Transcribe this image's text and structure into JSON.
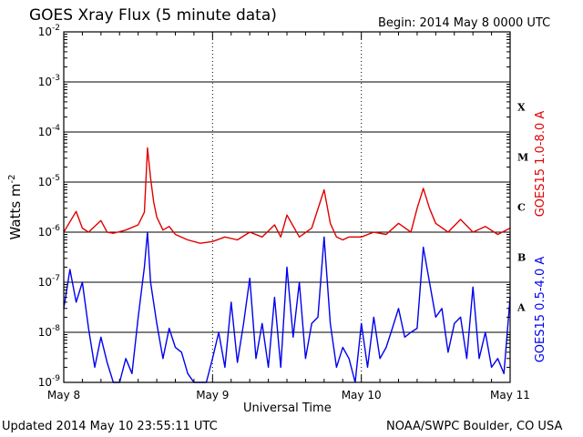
{
  "header": {
    "title": "GOES Xray Flux (5 minute data)",
    "begin": "Begin:  2014 May 8 0000 UTC"
  },
  "footer": {
    "updated": "Updated 2014 May 10 23:55:11 UTC",
    "credit": "NOAA/SWPC Boulder, CO USA"
  },
  "colors": {
    "long": "#e00000",
    "short": "#0000ee",
    "axis": "#000000"
  },
  "chart_data": {
    "type": "line",
    "title": "GOES Xray Flux (5 minute data)",
    "xlabel": "Universal Time",
    "ylabel": "Watts m",
    "ylabel_sup": "-2",
    "y_scale": "log",
    "ylim": [
      1e-09,
      0.01
    ],
    "xlim_hours": [
      0,
      72
    ],
    "grid": true,
    "x_ticks": [
      {
        "hour": 0,
        "label": "May 8"
      },
      {
        "hour": 24,
        "label": "May 9"
      },
      {
        "hour": 48,
        "label": "May 10"
      },
      {
        "hour": 72,
        "label": "May 11"
      }
    ],
    "y_ticks": [
      {
        "exp": -9,
        "base": "10",
        "sup": "-9"
      },
      {
        "exp": -8,
        "base": "10",
        "sup": "-8"
      },
      {
        "exp": -7,
        "base": "10",
        "sup": "-7"
      },
      {
        "exp": -6,
        "base": "10",
        "sup": "-6"
      },
      {
        "exp": -5,
        "base": "10",
        "sup": "-5"
      },
      {
        "exp": -4,
        "base": "10",
        "sup": "-4"
      },
      {
        "exp": -3,
        "base": "10",
        "sup": "-3"
      },
      {
        "exp": -2,
        "base": "10",
        "sup": "-2"
      }
    ],
    "flare_classes": [
      {
        "label": "A",
        "exp": -8
      },
      {
        "label": "B",
        "exp": -7
      },
      {
        "label": "C",
        "exp": -6
      },
      {
        "label": "M",
        "exp": -5
      },
      {
        "label": "X",
        "exp": -4
      }
    ],
    "series": [
      {
        "name": "GOES15 1.0-8.0 A",
        "color": "#e00000",
        "x_hours": [
          0,
          2,
          3,
          4,
          6,
          7,
          8,
          10,
          12,
          13,
          13.5,
          14,
          14.5,
          15,
          16,
          17,
          18,
          20,
          22,
          24,
          26,
          28,
          30,
          32,
          34,
          35,
          36,
          38,
          40,
          42,
          43,
          44,
          45,
          46,
          48,
          50,
          52,
          54,
          56,
          57,
          58,
          59,
          60,
          62,
          64,
          66,
          68,
          70,
          72
        ],
        "y": [
          1e-06,
          2.6e-06,
          1.2e-06,
          1e-06,
          1.7e-06,
          1e-06,
          9.5e-07,
          1.1e-06,
          1.4e-06,
          2.5e-06,
          4.8e-05,
          1.2e-05,
          4e-06,
          2e-06,
          1.1e-06,
          1.3e-06,
          9e-07,
          7e-07,
          6e-07,
          6.5e-07,
          8e-07,
          7e-07,
          1e-06,
          8e-07,
          1.4e-06,
          8e-07,
          2.2e-06,
          8e-07,
          1.2e-06,
          7e-06,
          1.5e-06,
          8e-07,
          7e-07,
          8e-07,
          8e-07,
          1e-06,
          9e-07,
          1.5e-06,
          1e-06,
          3e-06,
          7.5e-06,
          3e-06,
          1.5e-06,
          1e-06,
          1.8e-06,
          1e-06,
          1.3e-06,
          9e-07,
          1.2e-06
        ]
      },
      {
        "name": "GOES15 0.5-4.0 A",
        "color": "#0000ee",
        "x_hours": [
          0,
          1,
          2,
          3,
          4,
          5,
          6,
          7,
          8,
          9,
          10,
          11,
          12,
          13,
          13.5,
          14,
          15,
          16,
          17,
          18,
          19,
          20,
          21,
          22,
          23,
          24,
          25,
          26,
          27,
          28,
          29,
          30,
          31,
          32,
          33,
          34,
          35,
          36,
          37,
          38,
          39,
          40,
          41,
          42,
          43,
          44,
          45,
          46,
          47,
          48,
          49,
          50,
          51,
          52,
          53,
          54,
          55,
          56,
          57,
          58,
          59,
          60,
          61,
          62,
          63,
          64,
          65,
          66,
          67,
          68,
          69,
          70,
          71,
          72
        ],
        "y": [
          3e-08,
          1.8e-07,
          4e-08,
          1e-07,
          1.2e-08,
          2e-09,
          8e-09,
          2.5e-09,
          1e-09,
          1e-09,
          3e-09,
          1.5e-09,
          2e-08,
          2e-07,
          1e-06,
          1e-07,
          1.5e-08,
          3e-09,
          1.2e-08,
          5e-09,
          4e-09,
          1.5e-09,
          1e-09,
          1e-09,
          1e-09,
          3e-09,
          1e-08,
          2e-09,
          4e-08,
          2.5e-09,
          1.5e-08,
          1.2e-07,
          3e-09,
          1.5e-08,
          2e-09,
          5e-08,
          2e-09,
          2e-07,
          8e-09,
          1e-07,
          3e-09,
          1.5e-08,
          2e-08,
          8e-07,
          1.5e-08,
          2e-09,
          5e-09,
          3e-09,
          1e-09,
          1.5e-08,
          2e-09,
          2e-08,
          3e-09,
          5e-09,
          1.2e-08,
          3e-08,
          8e-09,
          1e-08,
          1.2e-08,
          5e-07,
          1e-07,
          2e-08,
          3e-08,
          4e-09,
          1.5e-08,
          2e-08,
          3e-09,
          8e-08,
          3e-09,
          1e-08,
          2e-09,
          3e-09,
          1.5e-09,
          5e-08
        ]
      }
    ]
  }
}
